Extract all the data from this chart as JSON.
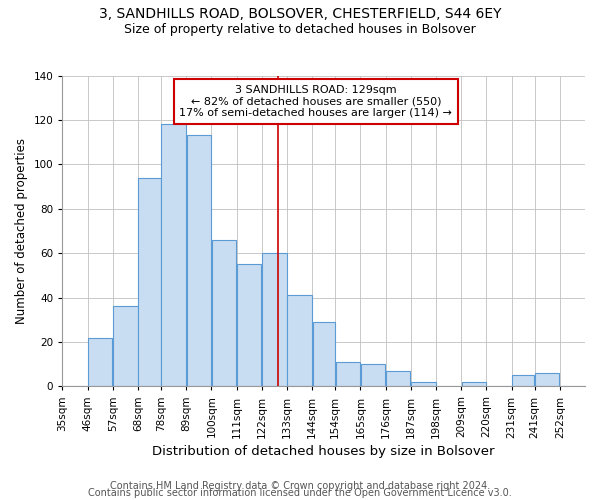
{
  "title1": "3, SANDHILLS ROAD, BOLSOVER, CHESTERFIELD, S44 6EY",
  "title2": "Size of property relative to detached houses in Bolsover",
  "xlabel": "Distribution of detached houses by size in Bolsover",
  "ylabel": "Number of detached properties",
  "bin_labels": [
    "35sqm",
    "46sqm",
    "57sqm",
    "68sqm",
    "78sqm",
    "89sqm",
    "100sqm",
    "111sqm",
    "122sqm",
    "133sqm",
    "144sqm",
    "154sqm",
    "165sqm",
    "176sqm",
    "187sqm",
    "198sqm",
    "209sqm",
    "220sqm",
    "231sqm",
    "241sqm",
    "252sqm"
  ],
  "bar_values": [
    0,
    22,
    36,
    94,
    118,
    113,
    66,
    55,
    60,
    41,
    29,
    11,
    10,
    7,
    2,
    0,
    2,
    0,
    5,
    6,
    0
  ],
  "bar_color": "#c9ddf2",
  "bar_edge_color": "#5b9bd5",
  "bin_edges": [
    35,
    46,
    57,
    68,
    78,
    89,
    100,
    111,
    122,
    133,
    144,
    154,
    165,
    176,
    187,
    198,
    209,
    220,
    231,
    241,
    252,
    263
  ],
  "annotation_title": "3 SANDHILLS ROAD: 129sqm",
  "annotation_line1": "← 82% of detached houses are smaller (550)",
  "annotation_line2": "17% of semi-detached houses are larger (114) →",
  "annotation_box_color": "#ffffff",
  "annotation_box_edge": "#cc0000",
  "vline_color": "#cc0000",
  "vline_x": 129,
  "ylim": [
    0,
    140
  ],
  "yticks": [
    0,
    20,
    40,
    60,
    80,
    100,
    120,
    140
  ],
  "footer1": "Contains HM Land Registry data © Crown copyright and database right 2024.",
  "footer2": "Contains public sector information licensed under the Open Government Licence v3.0.",
  "bg_color": "#ffffff",
  "grid_color": "#c0c0c0",
  "title1_fontsize": 10,
  "title2_fontsize": 9,
  "xlabel_fontsize": 9.5,
  "ylabel_fontsize": 8.5,
  "tick_fontsize": 7.5,
  "ann_fontsize": 8,
  "footer_fontsize": 7
}
